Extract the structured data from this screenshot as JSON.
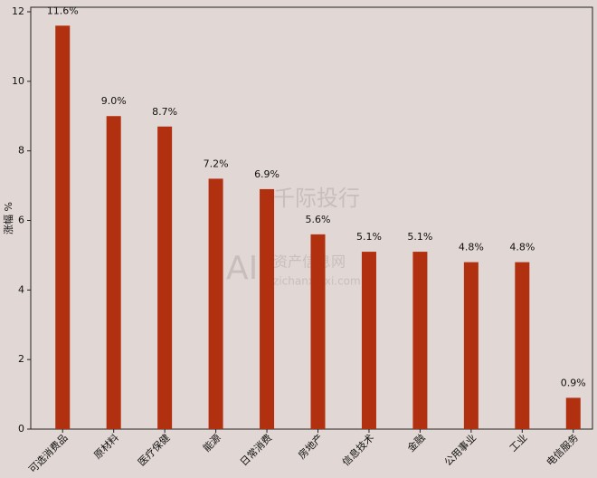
{
  "chart_data": {
    "type": "bar",
    "ylabel": "涨幅 %",
    "categories": [
      "可选消费品",
      "原材料",
      "医疗保健",
      "能源",
      "日常消费",
      "房地产",
      "信息技术",
      "金融",
      "公用事业",
      "工业",
      "电信服务"
    ],
    "values": [
      11.6,
      9.0,
      8.7,
      7.2,
      6.9,
      5.6,
      5.1,
      5.1,
      4.8,
      4.8,
      0.9
    ],
    "value_labels": [
      "11.6%",
      "9.0%",
      "8.7%",
      "7.2%",
      "6.9%",
      "5.6%",
      "5.1%",
      "5.1%",
      "4.8%",
      "4.8%",
      "0.9%"
    ],
    "color": "#b0300f",
    "ylim": [
      0,
      12.13
    ],
    "yticks": [
      0,
      2,
      4,
      6,
      8,
      10,
      12
    ],
    "grid": false,
    "watermark": [
      "千际投行",
      "AI",
      "资产信息网",
      "zichanxinxi.com"
    ]
  }
}
